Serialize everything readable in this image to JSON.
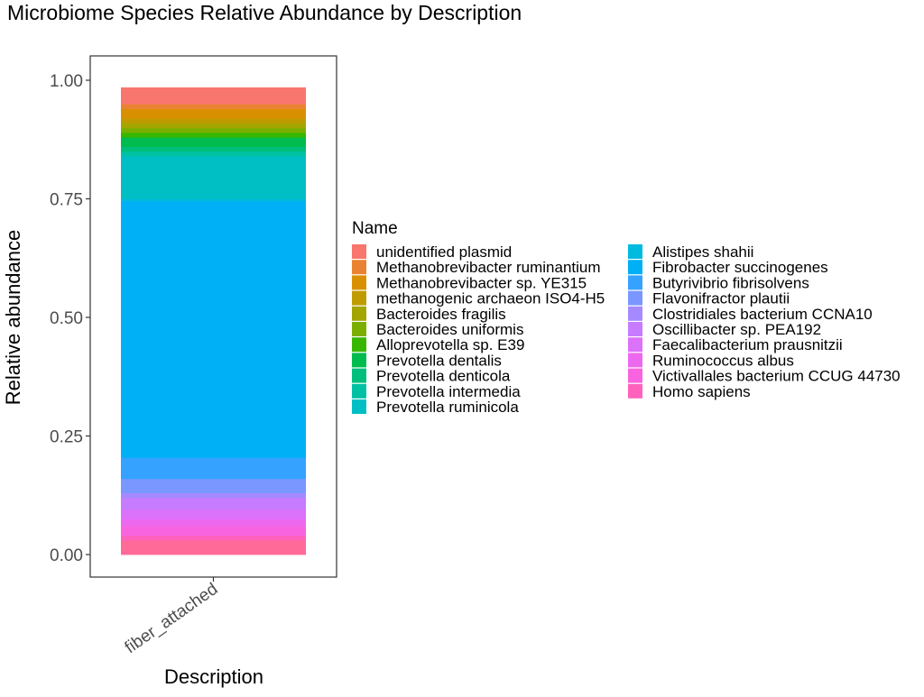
{
  "chart_data": {
    "type": "bar",
    "stacked": true,
    "title": "Microbiome Species Relative Abundance by Description",
    "xlabel": "Description",
    "ylabel": "Relative abundance",
    "categories": [
      "fiber_attached"
    ],
    "ylim": [
      0,
      1
    ],
    "yticks": [
      0,
      0.25,
      0.5,
      0.75,
      1
    ],
    "ytick_labels": [
      "0.00",
      "0.25",
      "0.50",
      "0.75",
      "1.00"
    ],
    "grid": false,
    "legend": {
      "title": "Name",
      "placement": "right",
      "columns": 2
    },
    "series": [
      {
        "name": "unidentified plasmid",
        "color": "#F8766D",
        "values": [
          0.035
        ]
      },
      {
        "name": "Methanobrevibacter ruminantium",
        "color": "#EA8331",
        "values": [
          0.01
        ]
      },
      {
        "name": "Methanobrevibacter sp. YE315",
        "color": "#D89000",
        "values": [
          0.02
        ]
      },
      {
        "name": "methanogenic archaeon ISO4-H5",
        "color": "#C09B00",
        "values": [
          0.01
        ]
      },
      {
        "name": "Bacteroides fragilis",
        "color": "#A3A500",
        "values": [
          0.01
        ]
      },
      {
        "name": "Bacteroides uniformis",
        "color": "#7CAE00",
        "values": [
          0.01
        ]
      },
      {
        "name": "Alloprevotella sp. E39",
        "color": "#39B600",
        "values": [
          0.01
        ]
      },
      {
        "name": "Prevotella dentalis",
        "color": "#00BB4E",
        "values": [
          0.02
        ]
      },
      {
        "name": "Prevotella denticola",
        "color": "#00BF7D",
        "values": [
          0.01
        ]
      },
      {
        "name": "Prevotella intermedia",
        "color": "#00C1A3",
        "values": [
          0.01
        ]
      },
      {
        "name": "Prevotella ruminicola",
        "color": "#00BFC4",
        "values": [
          0.09
        ]
      },
      {
        "name": "Alistipes shahii",
        "color": "#00BAE0",
        "values": [
          0.005
        ]
      },
      {
        "name": "Fibrobacter succinogenes",
        "color": "#00B0F6",
        "values": [
          0.54
        ]
      },
      {
        "name": "Butyrivibrio fibrisolvens",
        "color": "#35A2FF",
        "values": [
          0.045
        ]
      },
      {
        "name": "Flavonifractor plautii",
        "color": "#7997FF",
        "values": [
          0.03
        ]
      },
      {
        "name": "Clostridiales bacterium CCNA10",
        "color": "#A58AFF",
        "values": [
          0.01
        ]
      },
      {
        "name": "Oscillibacter sp. PEA192",
        "color": "#C77CFF",
        "values": [
          0.025
        ]
      },
      {
        "name": "Faecalibacterium prausnitzii",
        "color": "#DC71FA",
        "values": [
          0.02
        ]
      },
      {
        "name": "Ruminococcus albus",
        "color": "#EC69EF",
        "values": [
          0.015
        ]
      },
      {
        "name": "Victivallales bacterium CCUG 44730",
        "color": "#F863DF",
        "values": [
          0.02
        ]
      },
      {
        "name": "Homo sapiens",
        "color": "#FF62BC",
        "values": [
          0.01
        ]
      },
      {
        "name": "",
        "color": "#FF6A98",
        "values": [
          0.03
        ]
      }
    ]
  }
}
